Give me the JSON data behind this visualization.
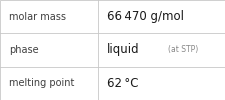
{
  "rows": [
    {
      "label": "molar mass",
      "value": "66 470 g/mol",
      "value_extra": false,
      "value_extra_text": null
    },
    {
      "label": "phase",
      "value": "liquid",
      "value_extra": true,
      "value_extra_text": "(at STP)"
    },
    {
      "label": "melting point",
      "value": "62 °C",
      "value_extra": false,
      "value_extra_text": null
    }
  ],
  "bg_color": "#ffffff",
  "border_color": "#c8c8c8",
  "label_color": "#404040",
  "value_color": "#1a1a1a",
  "extra_color": "#888888",
  "label_fontsize": 7.0,
  "value_fontsize": 8.5,
  "extra_fontsize": 5.5,
  "col_split": 0.435,
  "fig_width": 2.26,
  "fig_height": 1.0,
  "dpi": 100
}
